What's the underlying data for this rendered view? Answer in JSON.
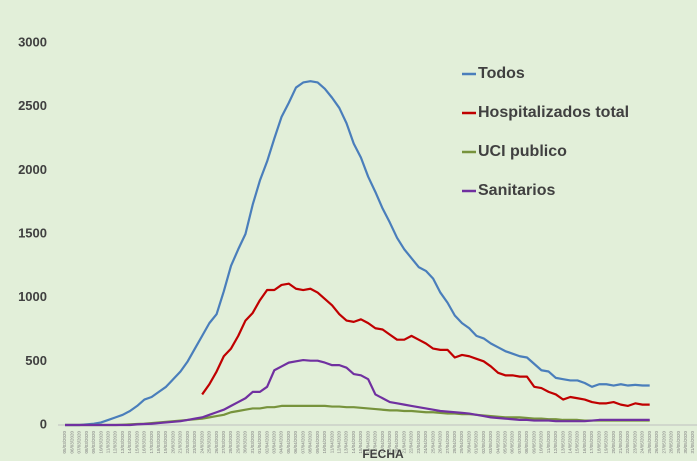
{
  "chart_data": {
    "type": "line",
    "x_label": "FECHA",
    "categories": [
      "05/03/2020",
      "06/03/2020",
      "07/03/2020",
      "08/03/2020",
      "09/03/2020",
      "10/03/2020",
      "11/03/2020",
      "12/03/2020",
      "13/03/2020",
      "14/03/2020",
      "15/03/2020",
      "16/03/2020",
      "17/03/2020",
      "18/03/2020",
      "19/03/2020",
      "20/03/2020",
      "21/03/2020",
      "22/03/2020",
      "23/03/2020",
      "24/03/2020",
      "25/03/2020",
      "26/03/2020",
      "27/03/2020",
      "28/03/2020",
      "29/03/2020",
      "30/03/2020",
      "31/03/2020",
      "01/04/2020",
      "02/04/2020",
      "03/04/2020",
      "04/04/2020",
      "05/04/2020",
      "06/04/2020",
      "07/04/2020",
      "08/04/2020",
      "09/04/2020",
      "10/04/2020",
      "11/04/2020",
      "12/04/2020",
      "13/04/2020",
      "14/04/2020",
      "15/04/2020",
      "16/04/2020",
      "17/04/2020",
      "18/04/2020",
      "19/04/2020",
      "20/04/2020",
      "21/04/2020",
      "22/04/2020",
      "23/04/2020",
      "24/04/2020",
      "25/04/2020",
      "26/04/2020",
      "27/04/2020",
      "28/04/2020",
      "29/04/2020",
      "30/04/2020",
      "01/05/2020",
      "02/05/2020",
      "03/05/2020",
      "04/05/2020",
      "05/05/2020",
      "06/05/2020",
      "07/05/2020",
      "08/05/2020",
      "09/05/2020",
      "10/05/2020",
      "11/05/2020",
      "12/05/2020",
      "13/05/2020",
      "14/05/2020",
      "15/05/2020",
      "16/05/2020",
      "17/05/2020",
      "18/05/2020",
      "19/05/2020",
      "20/05/2020",
      "21/05/2020",
      "22/05/2020",
      "23/05/2020",
      "24/05/2020",
      "25/05/2020",
      "26/05/2020",
      "27/05/2020",
      "28/05/2020",
      "29/05/2020",
      "30/05/2020",
      "31/05/2020"
    ],
    "series": [
      {
        "name": "Todos",
        "color": "#4a7ebb",
        "values": [
          0,
          0,
          0,
          5,
          10,
          20,
          40,
          60,
          80,
          110,
          150,
          200,
          220,
          260,
          300,
          360,
          420,
          500,
          600,
          700,
          800,
          870,
          1050,
          1250,
          1380,
          1500,
          1730,
          1920,
          2070,
          2250,
          2420,
          2530,
          2650,
          2690,
          2700,
          2690,
          2640,
          2570,
          2490,
          2370,
          2210,
          2100,
          1950,
          1830,
          1700,
          1590,
          1470,
          1380,
          1310,
          1240,
          1210,
          1150,
          1040,
          960,
          860,
          800,
          760,
          700,
          680,
          640,
          610,
          580,
          560,
          540,
          530,
          480,
          430,
          420,
          370,
          360,
          350,
          350,
          330,
          300,
          320,
          320,
          310,
          320,
          310,
          315,
          310,
          310,
          null,
          null,
          null,
          null,
          null,
          null
        ]
      },
      {
        "name": "Hospitalizados total",
        "color": "#c00000",
        "values": [
          null,
          null,
          null,
          null,
          null,
          null,
          null,
          null,
          null,
          null,
          null,
          null,
          null,
          null,
          null,
          null,
          null,
          null,
          null,
          240,
          320,
          420,
          540,
          600,
          700,
          820,
          880,
          980,
          1060,
          1060,
          1100,
          1110,
          1070,
          1060,
          1070,
          1040,
          990,
          940,
          870,
          820,
          810,
          830,
          800,
          760,
          750,
          710,
          670,
          670,
          700,
          670,
          640,
          600,
          590,
          590,
          530,
          550,
          540,
          520,
          500,
          460,
          410,
          390,
          390,
          380,
          380,
          300,
          290,
          260,
          240,
          200,
          220,
          210,
          200,
          180,
          170,
          170,
          180,
          160,
          150,
          170,
          160,
          160,
          null,
          null,
          null,
          null,
          null,
          null
        ]
      },
      {
        "name": "UCI publico",
        "color": "#77933c",
        "values": [
          0,
          0,
          0,
          0,
          0,
          0,
          0,
          0,
          2,
          5,
          8,
          10,
          15,
          20,
          25,
          30,
          35,
          40,
          45,
          50,
          60,
          70,
          80,
          100,
          110,
          120,
          130,
          130,
          140,
          140,
          150,
          150,
          150,
          150,
          150,
          150,
          150,
          145,
          145,
          140,
          140,
          135,
          130,
          125,
          120,
          115,
          115,
          110,
          110,
          105,
          100,
          100,
          95,
          90,
          90,
          85,
          85,
          80,
          75,
          70,
          65,
          60,
          60,
          60,
          55,
          50,
          50,
          45,
          45,
          40,
          40,
          40,
          35,
          35,
          35,
          35,
          35,
          35,
          35,
          35,
          35,
          35,
          null,
          null,
          null,
          null,
          null,
          null
        ]
      },
      {
        "name": "Sanitarios",
        "color": "#7030a0",
        "values": [
          0,
          0,
          0,
          0,
          0,
          0,
          0,
          0,
          0,
          0,
          5,
          8,
          10,
          15,
          20,
          25,
          30,
          40,
          50,
          60,
          80,
          100,
          120,
          150,
          180,
          210,
          260,
          260,
          300,
          430,
          460,
          490,
          500,
          510,
          505,
          505,
          490,
          470,
          470,
          450,
          400,
          390,
          360,
          240,
          210,
          180,
          170,
          160,
          150,
          140,
          130,
          120,
          110,
          105,
          100,
          95,
          90,
          80,
          70,
          60,
          55,
          50,
          45,
          40,
          40,
          35,
          35,
          35,
          30,
          30,
          30,
          30,
          30,
          35,
          40,
          40,
          40,
          40,
          40,
          40,
          40,
          40,
          null,
          null,
          null,
          null,
          null,
          null
        ]
      }
    ],
    "ylim": [
      0,
      3000
    ],
    "yticks": [
      0,
      500,
      1000,
      1500,
      2000,
      2500,
      3000
    ],
    "legend_position": "upper right"
  }
}
